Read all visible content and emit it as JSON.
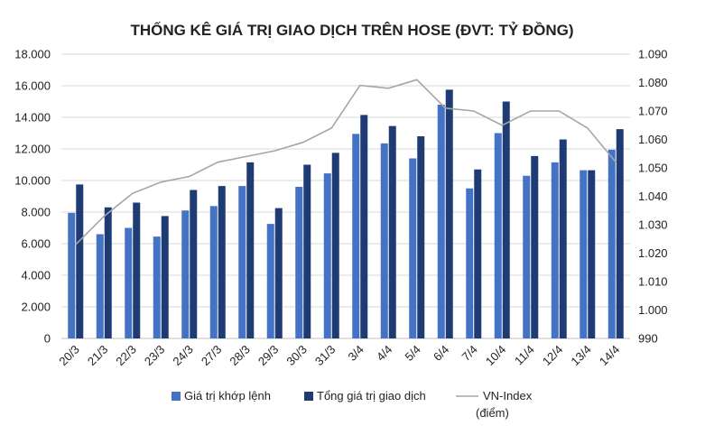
{
  "chart_data": {
    "type": "bar+line",
    "title": "THỐNG KÊ GIÁ TRỊ GIAO DỊCH TRÊN HOSE (ĐVT: TỶ ĐỒNG)",
    "categories": [
      "20/3",
      "21/3",
      "22/3",
      "23/3",
      "24/3",
      "27/3",
      "28/3",
      "29/3",
      "30/3",
      "31/3",
      "3/4",
      "4/4",
      "5/4",
      "6/4",
      "7/4",
      "10/4",
      "11/4",
      "12/4",
      "13/4",
      "14/4"
    ],
    "series": [
      {
        "name": "Giá trị khớp lệnh",
        "kind": "bar",
        "axis": "left",
        "color": "#4472C4",
        "values": [
          7950,
          6600,
          7000,
          6450,
          8100,
          8380,
          9650,
          7250,
          9600,
          10450,
          12950,
          12350,
          11400,
          14800,
          9500,
          13000,
          10300,
          11150,
          10650,
          11950
        ]
      },
      {
        "name": "Tổng giá trị giao dịch",
        "kind": "bar",
        "axis": "left",
        "color": "#1F3B73",
        "values": [
          9750,
          8300,
          8600,
          7750,
          9400,
          9650,
          11150,
          8250,
          11000,
          11750,
          14150,
          13450,
          12800,
          15750,
          10700,
          15000,
          11550,
          12600,
          10650,
          13250
        ]
      },
      {
        "name": "VN-Index (điểm)",
        "legend_lines": [
          "VN-Index",
          "(điểm)"
        ],
        "kind": "line",
        "axis": "right",
        "color": "#A6A6A6",
        "values": [
          1023,
          1033,
          1041,
          1045,
          1047,
          1052,
          1054,
          1056,
          1059,
          1064,
          1079,
          1078,
          1081,
          1071,
          1070,
          1065,
          1070,
          1070,
          1064,
          1052
        ]
      }
    ],
    "y_left": {
      "min": 0,
      "max": 18000,
      "step": 2000,
      "tick_labels": [
        "0",
        "2.000",
        "4.000",
        "6.000",
        "8.000",
        "10.000",
        "12.000",
        "14.000",
        "16.000",
        "18.000"
      ]
    },
    "y_right": {
      "min": 990,
      "max": 1090,
      "step": 10,
      "tick_labels": [
        "990",
        "1.000",
        "1.010",
        "1.020",
        "1.030",
        "1.040",
        "1.050",
        "1.060",
        "1.070",
        "1.080",
        "1.090"
      ]
    },
    "grid": true,
    "legend_position": "bottom"
  }
}
